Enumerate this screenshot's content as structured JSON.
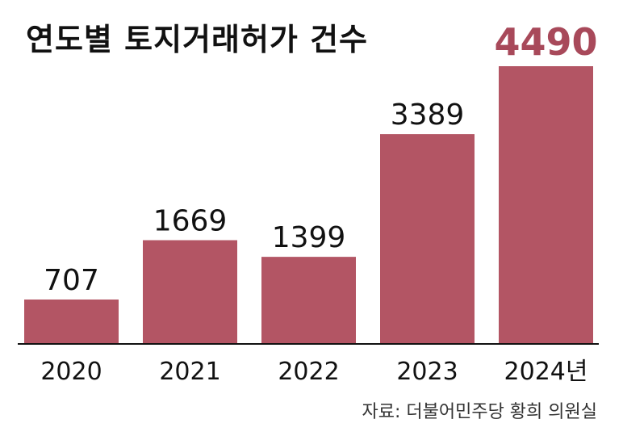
{
  "chart_data": {
    "type": "bar",
    "title": "연도별 토지거래허가 건수",
    "categories": [
      "2020",
      "2021",
      "2022",
      "2023",
      "2024년"
    ],
    "values": [
      707,
      1669,
      1399,
      3389,
      4490
    ],
    "value_labels": [
      "707",
      "1669",
      "1399",
      "3389",
      "4490"
    ],
    "xlabel": "",
    "ylabel": "",
    "ylim": [
      0,
      4490
    ],
    "grid": false,
    "legend": "none",
    "highlight_index": 4
  },
  "source": "자료: 더불어민주당 황희 의원실",
  "colors": {
    "bar": "#b35564",
    "highlight_label": "#a8495a",
    "label": "#111111",
    "baseline": "#111111"
  }
}
